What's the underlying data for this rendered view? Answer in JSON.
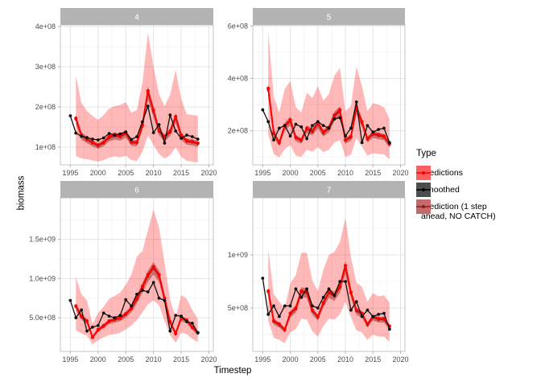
{
  "legend": {
    "title": "Type",
    "entries": [
      {
        "label": "Predictions",
        "fill": "#FB6060",
        "line": "#FF0000"
      },
      {
        "label": "Smoothed",
        "fill": "#4D4D4D",
        "line": "#000000"
      },
      {
        "label": "Prediction (1 step\n ahead, NO CATCH)",
        "fill": "#C56A6A",
        "line": "#8B2020"
      }
    ]
  },
  "style": {
    "ribbon_predictions": "rgba(255,0,0,0.28)",
    "ribbon_onestep": "rgba(150,20,20,0.45)",
    "line_predictions": "#FF0000",
    "line_smoothed": "#111111",
    "line_onestep": "#8B2020",
    "strip_fill": "#B3B3B3",
    "strip_text": "#FFFFFF",
    "grid_major": "#E4E4E4",
    "grid_minor": "#F1F1F1",
    "panel_border": "#C4C4C4",
    "axis_text": "#4D4D4D",
    "tick_color": "#B3B3B3"
  },
  "chart_data": {
    "type": "line",
    "title": "",
    "xlabel": "Timestep",
    "ylabel": "biomass",
    "x_ticks": [
      1995,
      2000,
      2005,
      2010,
      2015,
      2020
    ],
    "xlim": [
      1993.2,
      2020.8
    ],
    "grid": true,
    "legend_position": "right",
    "onestep_ci_frac": 0.07,
    "facets": [
      {
        "label": "4",
        "ylim": [
          56000000.0,
          404000000.0
        ],
        "yticks": [
          {
            "value": 100000000.0,
            "label": "1e+08"
          },
          {
            "value": 200000000.0,
            "label": "2e+08"
          },
          {
            "value": 300000000.0,
            "label": "3e+08"
          },
          {
            "value": 400000000.0,
            "label": "4e+08"
          }
        ],
        "years": [
          1995,
          1996,
          1997,
          1998,
          1999,
          2000,
          2001,
          2002,
          2003,
          2004,
          2005,
          2006,
          2007,
          2008,
          2009,
          2010,
          2011,
          2012,
          2013,
          2014,
          2015,
          2016,
          2017,
          2018
        ],
        "series": {
          "smoothed": [
            178000000.0,
            135000000.0,
            127000000.0,
            124000000.0,
            120000000.0,
            118000000.0,
            123000000.0,
            134000000.0,
            130000000.0,
            133000000.0,
            138000000.0,
            119000000.0,
            126000000.0,
            163000000.0,
            202000000.0,
            136000000.0,
            156000000.0,
            110000000.0,
            180000000.0,
            140000000.0,
            122000000.0,
            130000000.0,
            126000000.0,
            120000000.0
          ],
          "predictions": [
            null,
            172000000.0,
            130000000.0,
            120000000.0,
            112000000.0,
            105000000.0,
            112000000.0,
            126000000.0,
            131000000.0,
            128000000.0,
            136000000.0,
            113000000.0,
            112000000.0,
            155000000.0,
            240000000.0,
            192000000.0,
            142000000.0,
            126000000.0,
            140000000.0,
            176000000.0,
            130000000.0,
            116000000.0,
            114000000.0,
            110000000.0
          ],
          "prediction_1step_no_catch": [
            null,
            169000000.0,
            128000000.0,
            118000000.0,
            110000000.0,
            103000000.0,
            110000000.0,
            123000000.0,
            128000000.0,
            125000000.0,
            133000000.0,
            111000000.0,
            110000000.0,
            152000000.0,
            235000000.0,
            188000000.0,
            139000000.0,
            123000000.0,
            137000000.0,
            172000000.0,
            127000000.0,
            114000000.0,
            112000000.0,
            108000000.0
          ],
          "ribbon_lo": [
            null,
            78000000.0,
            72000000.0,
            70000000.0,
            67000000.0,
            64000000.0,
            68000000.0,
            74000000.0,
            77000000.0,
            75000000.0,
            79000000.0,
            68000000.0,
            66000000.0,
            88000000.0,
            130000000.0,
            105000000.0,
            83000000.0,
            72000000.0,
            80000000.0,
            100000000.0,
            76000000.0,
            66000000.0,
            64000000.0,
            62000000.0
          ],
          "ribbon_hi": [
            null,
            278000000.0,
            210000000.0,
            190000000.0,
            178000000.0,
            168000000.0,
            180000000.0,
            196000000.0,
            202000000.0,
            205000000.0,
            212000000.0,
            186000000.0,
            192000000.0,
            260000000.0,
            385000000.0,
            300000000.0,
            232000000.0,
            202000000.0,
            230000000.0,
            292000000.0,
            220000000.0,
            182000000.0,
            180000000.0,
            178000000.0
          ]
        }
      },
      {
        "label": "5",
        "ylim": [
          70000000.0,
          604000000.0
        ],
        "yticks": [
          {
            "value": 200000000.0,
            "label": "2e+08"
          },
          {
            "value": 400000000.0,
            "label": "4e+08"
          },
          {
            "value": 600000000.0,
            "label": "6e+08"
          }
        ],
        "years": [
          1995,
          1996,
          1997,
          1998,
          1999,
          2000,
          2001,
          2002,
          2003,
          2004,
          2005,
          2006,
          2007,
          2008,
          2009,
          2010,
          2011,
          2012,
          2013,
          2014,
          2015,
          2016,
          2017,
          2018
        ],
        "series": {
          "smoothed": [
            280000000.0,
            235000000.0,
            165000000.0,
            210000000.0,
            220000000.0,
            180000000.0,
            225000000.0,
            215000000.0,
            170000000.0,
            220000000.0,
            235000000.0,
            220000000.0,
            210000000.0,
            245000000.0,
            250000000.0,
            180000000.0,
            210000000.0,
            310000000.0,
            155000000.0,
            220000000.0,
            195000000.0,
            205000000.0,
            210000000.0,
            155000000.0
          ],
          "predictions": [
            null,
            362000000.0,
            192000000.0,
            155000000.0,
            220000000.0,
            242000000.0,
            175000000.0,
            165000000.0,
            210000000.0,
            200000000.0,
            230000000.0,
            195000000.0,
            212000000.0,
            260000000.0,
            280000000.0,
            165000000.0,
            178000000.0,
            290000000.0,
            235000000.0,
            170000000.0,
            190000000.0,
            185000000.0,
            180000000.0,
            150000000.0
          ],
          "prediction_1step_no_catch": [
            null,
            355000000.0,
            188000000.0,
            152000000.0,
            216000000.0,
            237000000.0,
            172000000.0,
            162000000.0,
            206000000.0,
            196000000.0,
            225000000.0,
            191000000.0,
            208000000.0,
            255000000.0,
            274000000.0,
            162000000.0,
            174000000.0,
            284000000.0,
            230000000.0,
            167000000.0,
            186000000.0,
            181000000.0,
            176000000.0,
            147000000.0
          ],
          "ribbon_lo": [
            null,
            185000000.0,
            112000000.0,
            98000000.0,
            130000000.0,
            145000000.0,
            105000000.0,
            100000000.0,
            128000000.0,
            120000000.0,
            138000000.0,
            118000000.0,
            128000000.0,
            155000000.0,
            165000000.0,
            100000000.0,
            108000000.0,
            172000000.0,
            140000000.0,
            105000000.0,
            115000000.0,
            112000000.0,
            110000000.0,
            92000000.0
          ],
          "ribbon_hi": [
            null,
            580000000.0,
            330000000.0,
            270000000.0,
            360000000.0,
            390000000.0,
            290000000.0,
            270000000.0,
            345000000.0,
            325000000.0,
            370000000.0,
            315000000.0,
            340000000.0,
            410000000.0,
            440000000.0,
            275000000.0,
            295000000.0,
            445000000.0,
            370000000.0,
            275000000.0,
            305000000.0,
            300000000.0,
            290000000.0,
            245000000.0
          ]
        }
      },
      {
        "label": "6",
        "ylim": [
          70000000.0,
          2030000000.0
        ],
        "yticks": [
          {
            "value": 500000000.0,
            "label": "5.0e+08"
          },
          {
            "value": 1000000000.0,
            "label": "1.0e+09"
          },
          {
            "value": 1500000000.0,
            "label": "1.5e+09"
          }
        ],
        "years": [
          1995,
          1996,
          1997,
          1998,
          1999,
          2000,
          2001,
          2002,
          2003,
          2004,
          2005,
          2006,
          2007,
          2008,
          2009,
          2010,
          2011,
          2012,
          2013,
          2014,
          2015,
          2016,
          2017,
          2018
        ],
        "series": {
          "smoothed": [
            720000000.0,
            500000000.0,
            600000000.0,
            330000000.0,
            380000000.0,
            400000000.0,
            560000000.0,
            520000000.0,
            500000000.0,
            530000000.0,
            730000000.0,
            650000000.0,
            800000000.0,
            850000000.0,
            830000000.0,
            950000000.0,
            750000000.0,
            720000000.0,
            330000000.0,
            530000000.0,
            520000000.0,
            450000000.0,
            430000000.0,
            310000000.0
          ],
          "predictions": [
            null,
            650000000.0,
            520000000.0,
            460000000.0,
            250000000.0,
            350000000.0,
            400000000.0,
            460000000.0,
            480000000.0,
            500000000.0,
            550000000.0,
            620000000.0,
            750000000.0,
            900000000.0,
            1050000000.0,
            1150000000.0,
            1050000000.0,
            750000000.0,
            450000000.0,
            300000000.0,
            500000000.0,
            470000000.0,
            380000000.0,
            310000000.0
          ],
          "prediction_1step_no_catch": [
            null,
            640000000.0,
            510000000.0,
            450000000.0,
            245000000.0,
            340000000.0,
            390000000.0,
            450000000.0,
            470000000.0,
            490000000.0,
            540000000.0,
            610000000.0,
            730000000.0,
            880000000.0,
            1030000000.0,
            1130000000.0,
            1030000000.0,
            730000000.0,
            440000000.0,
            290000000.0,
            490000000.0,
            460000000.0,
            370000000.0,
            300000000.0
          ],
          "ribbon_lo": [
            null,
            340000000.0,
            300000000.0,
            270000000.0,
            160000000.0,
            210000000.0,
            250000000.0,
            280000000.0,
            290000000.0,
            310000000.0,
            350000000.0,
            400000000.0,
            470000000.0,
            570000000.0,
            670000000.0,
            720000000.0,
            660000000.0,
            460000000.0,
            280000000.0,
            180000000.0,
            310000000.0,
            290000000.0,
            230000000.0,
            190000000.0
          ],
          "ribbon_hi": [
            null,
            1020000000.0,
            800000000.0,
            720000000.0,
            420000000.0,
            560000000.0,
            640000000.0,
            740000000.0,
            780000000.0,
            820000000.0,
            920000000.0,
            1050000000.0,
            1280000000.0,
            1350000000.0,
            1620000000.0,
            1880000000.0,
            1650000000.0,
            1200000000.0,
            730000000.0,
            500000000.0,
            790000000.0,
            740000000.0,
            600000000.0,
            480000000.0
          ]
        }
      },
      {
        "label": "7",
        "ylim": [
          91000000.0,
          1538000000.0
        ],
        "yticks": [
          {
            "value": 500000000.0,
            "label": "5e+08"
          },
          {
            "value": 1000000000.0,
            "label": "1e+09"
          }
        ],
        "years": [
          1995,
          1996,
          1997,
          1998,
          1999,
          2000,
          2001,
          2002,
          2003,
          2004,
          2005,
          2006,
          2007,
          2008,
          2009,
          2010,
          2011,
          2012,
          2013,
          2014,
          2015,
          2016,
          2017,
          2018
        ],
        "series": {
          "smoothed": [
            780000000.0,
            440000000.0,
            520000000.0,
            420000000.0,
            520000000.0,
            520000000.0,
            680000000.0,
            600000000.0,
            680000000.0,
            520000000.0,
            500000000.0,
            600000000.0,
            680000000.0,
            620000000.0,
            750000000.0,
            750000000.0,
            480000000.0,
            560000000.0,
            420000000.0,
            480000000.0,
            420000000.0,
            440000000.0,
            450000000.0,
            300000000.0
          ],
          "predictions": [
            null,
            660000000.0,
            380000000.0,
            350000000.0,
            300000000.0,
            450000000.0,
            500000000.0,
            660000000.0,
            650000000.0,
            480000000.0,
            420000000.0,
            550000000.0,
            650000000.0,
            620000000.0,
            700000000.0,
            900000000.0,
            650000000.0,
            480000000.0,
            450000000.0,
            350000000.0,
            420000000.0,
            400000000.0,
            400000000.0,
            330000000.0
          ],
          "prediction_1step_no_catch": [
            null,
            650000000.0,
            370000000.0,
            340000000.0,
            290000000.0,
            440000000.0,
            490000000.0,
            650000000.0,
            640000000.0,
            470000000.0,
            410000000.0,
            540000000.0,
            640000000.0,
            610000000.0,
            690000000.0,
            880000000.0,
            640000000.0,
            470000000.0,
            440000000.0,
            340000000.0,
            410000000.0,
            390000000.0,
            390000000.0,
            320000000.0
          ],
          "ribbon_lo": [
            null,
            380000000.0,
            220000000.0,
            200000000.0,
            170000000.0,
            270000000.0,
            300000000.0,
            400000000.0,
            390000000.0,
            280000000.0,
            230000000.0,
            330000000.0,
            400000000.0,
            390000000.0,
            440000000.0,
            560000000.0,
            410000000.0,
            290000000.0,
            270000000.0,
            200000000.0,
            250000000.0,
            230000000.0,
            230000000.0,
            180000000.0
          ],
          "ribbon_hi": [
            null,
            1050000000.0,
            630000000.0,
            560000000.0,
            500000000.0,
            730000000.0,
            810000000.0,
            1020000000.0,
            1020000000.0,
            760000000.0,
            660000000.0,
            860000000.0,
            1000000000.0,
            1030000000.0,
            1120000000.0,
            1350000000.0,
            980000000.0,
            740000000.0,
            700000000.0,
            560000000.0,
            640000000.0,
            610000000.0,
            620000000.0,
            550000000.0
          ]
        }
      }
    ]
  }
}
